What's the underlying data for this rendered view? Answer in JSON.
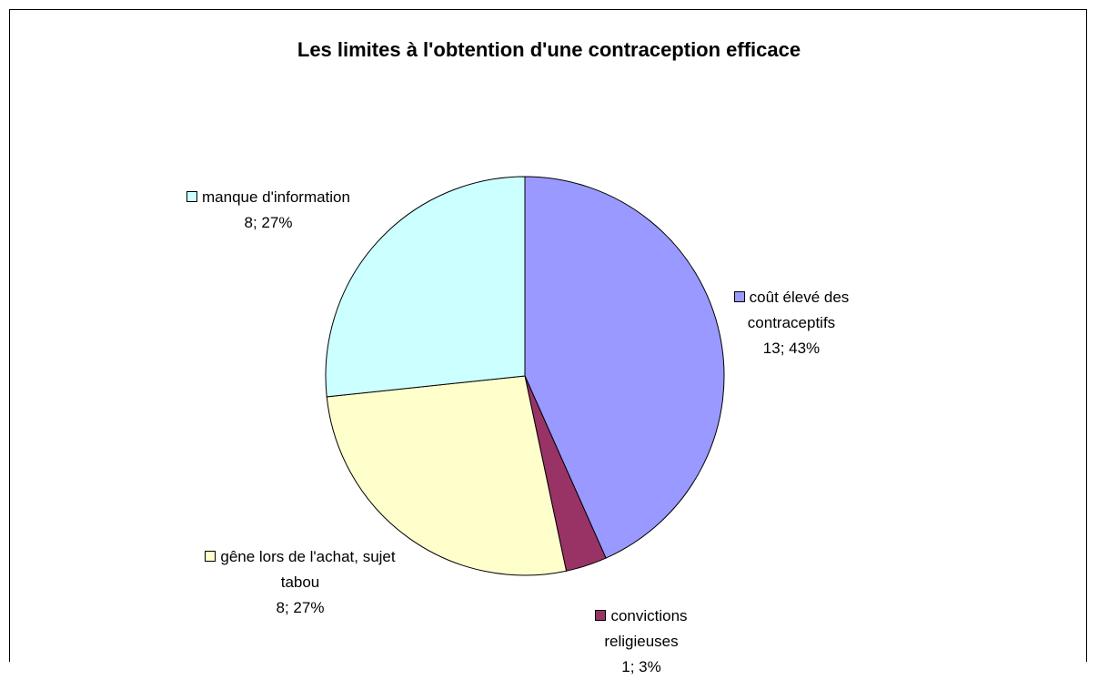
{
  "chart_data": {
    "type": "pie",
    "title": "Les limites à l'obtention d'une contraception efficace",
    "categories": [
      "coût élevé des contraceptifs",
      "convictions religieuses",
      "gêne lors de l'achat, sujet tabou",
      "manque d'information"
    ],
    "values": [
      13,
      1,
      8,
      8
    ],
    "value_labels": [
      "13; 43%",
      "1; 3%",
      "8; 27%",
      "8; 27%"
    ],
    "colors": [
      "#9999ff",
      "#993366",
      "#ffffcc",
      "#ccffff"
    ]
  }
}
